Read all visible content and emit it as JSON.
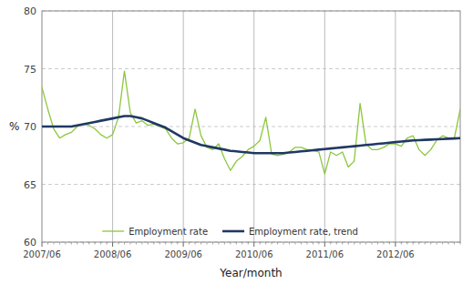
{
  "chart_data": {
    "type": "line",
    "xlabel": "Year/month",
    "ylabel": "%",
    "categories": [
      "2007/06",
      null,
      null,
      null,
      null,
      null,
      null,
      null,
      null,
      null,
      null,
      null,
      "2008/06",
      null,
      null,
      null,
      null,
      null,
      null,
      null,
      null,
      null,
      null,
      null,
      "2009/06",
      null,
      null,
      null,
      null,
      null,
      null,
      null,
      null,
      null,
      null,
      null,
      "2010/06",
      null,
      null,
      null,
      null,
      null,
      null,
      null,
      null,
      null,
      null,
      null,
      "2011/06",
      null,
      null,
      null,
      null,
      null,
      null,
      null,
      null,
      null,
      null,
      null,
      "2012/06",
      null,
      null,
      null,
      null,
      null,
      null,
      null,
      null,
      null,
      null,
      null
    ],
    "series": [
      {
        "name": "Employment rate",
        "color": "#8dc63f",
        "values": [
          73.4,
          71.5,
          69.8,
          69.0,
          69.3,
          69.5,
          70.0,
          70.2,
          70.1,
          69.8,
          69.3,
          69.0,
          69.3,
          70.8,
          74.8,
          71.2,
          70.3,
          70.5,
          70.1,
          70.2,
          70.0,
          69.8,
          69.0,
          68.5,
          68.6,
          69.0,
          71.5,
          69.2,
          68.2,
          68.0,
          68.5,
          67.2,
          66.2,
          67.0,
          67.4,
          68.0,
          68.3,
          68.8,
          70.8,
          67.6,
          67.5,
          67.6,
          67.8,
          68.2,
          68.2,
          68.0,
          67.9,
          67.8,
          65.9,
          67.8,
          67.5,
          67.8,
          66.5,
          67.0,
          72.0,
          68.5,
          68.0,
          68.0,
          68.2,
          68.5,
          68.5,
          68.3,
          69.0,
          69.2,
          68.0,
          67.5,
          68.0,
          68.8,
          69.2,
          69.0,
          69.0,
          71.5
        ]
      },
      {
        "name": "Employment rate, trend",
        "color": "#1f3864",
        "values": [
          70.0,
          70.0,
          70.0,
          70.0,
          70.0,
          70.0,
          70.1,
          70.2,
          70.3,
          70.4,
          70.5,
          70.6,
          70.7,
          70.8,
          70.9,
          70.9,
          70.8,
          70.7,
          70.5,
          70.3,
          70.1,
          69.9,
          69.6,
          69.3,
          69.0,
          68.8,
          68.6,
          68.4,
          68.3,
          68.2,
          68.1,
          68.0,
          67.9,
          67.85,
          67.8,
          67.75,
          67.7,
          67.7,
          67.7,
          67.7,
          67.7,
          67.7,
          67.75,
          67.8,
          67.85,
          67.9,
          67.95,
          68.0,
          68.05,
          68.1,
          68.15,
          68.2,
          68.25,
          68.3,
          68.35,
          68.4,
          68.45,
          68.5,
          68.55,
          68.6,
          68.65,
          68.7,
          68.75,
          68.8,
          68.82,
          68.85,
          68.87,
          68.9,
          68.92,
          68.95,
          68.97,
          69.0
        ]
      }
    ],
    "ylim": [
      60,
      80
    ],
    "yticks": [
      60,
      65,
      70,
      75,
      80
    ],
    "grid": true,
    "legend": "lower center"
  }
}
